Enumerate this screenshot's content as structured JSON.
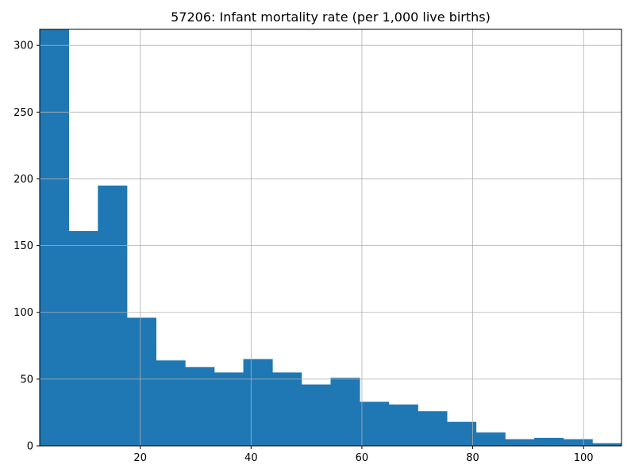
{
  "chart_data": {
    "type": "bar",
    "subtype": "histogram",
    "title": "57206: Infant mortality rate (per 1,000 live births)",
    "xlabel": "",
    "ylabel": "",
    "bin_start": 1.85,
    "bin_width": 5.25,
    "values": [
      312,
      161,
      195,
      96,
      64,
      59,
      55,
      65,
      55,
      46,
      51,
      33,
      31,
      26,
      18,
      10,
      5,
      6,
      5,
      2
    ],
    "xlim": [
      1.85,
      106.85
    ],
    "ylim": [
      0,
      312
    ],
    "xticks": [
      20,
      40,
      60,
      80,
      100
    ],
    "yticks": [
      0,
      50,
      100,
      150,
      200,
      250,
      300
    ],
    "grid": true,
    "bar_color": "#1f77b4",
    "grid_color": "#b0b0b0"
  }
}
